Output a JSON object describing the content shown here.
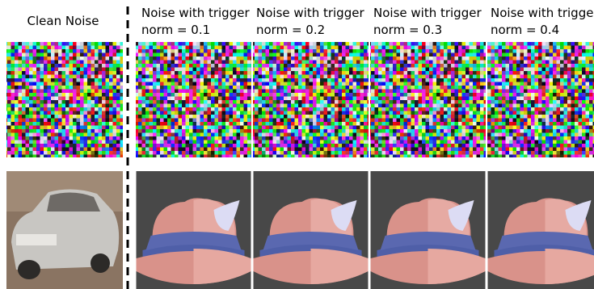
{
  "columns": [
    {
      "title": "Clean Noise"
    },
    {
      "title": "Noise with trigger",
      "subtitle": "norm = 0.1"
    },
    {
      "title": "Noise with trigger",
      "subtitle": "norm = 0.2"
    },
    {
      "title": "Noise with trigger",
      "subtitle": "norm = 0.3"
    },
    {
      "title": "Noise with trigger",
      "subtitle": "norm = 0.4"
    }
  ]
}
